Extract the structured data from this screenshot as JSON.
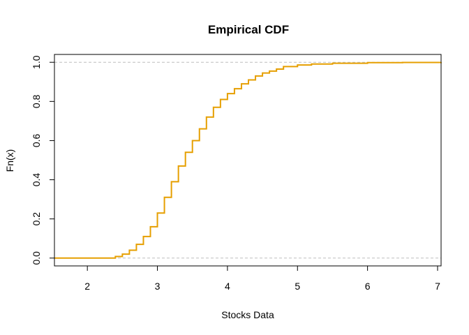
{
  "chart_data": {
    "type": "line",
    "step": true,
    "title": "Empirical CDF",
    "xlabel": "Stocks Data",
    "ylabel": "Fn(x)",
    "xlim": [
      1.53,
      7.05
    ],
    "ylim": [
      -0.04,
      1.04
    ],
    "xticks": [
      2,
      3,
      4,
      5,
      6,
      7
    ],
    "yticks": [
      0.0,
      0.2,
      0.4,
      0.6,
      0.8,
      1.0
    ],
    "xtick_labels": [
      "2",
      "3",
      "4",
      "5",
      "6",
      "7"
    ],
    "ytick_labels": [
      "0.0",
      "0.2",
      "0.4",
      "0.6",
      "0.8",
      "1.0"
    ],
    "reference_lines": [
      0,
      1
    ],
    "reference_line_style": "dashed",
    "grid": false,
    "legend": "none",
    "line_color": "#E69F00",
    "reference_color": "#BEBEBE",
    "series": [
      {
        "x": [
          1.53,
          2.3,
          2.4,
          2.5,
          2.6,
          2.7,
          2.8,
          2.9,
          3.0,
          3.1,
          3.2,
          3.3,
          3.4,
          3.5,
          3.6,
          3.7,
          3.8,
          3.9,
          4.0,
          4.1,
          4.2,
          4.3,
          4.4,
          4.5,
          4.6,
          4.7,
          4.8,
          5.0,
          5.2,
          5.5,
          6.0,
          6.5,
          7.05
        ],
        "y": [
          0.0,
          0.0,
          0.008,
          0.02,
          0.04,
          0.07,
          0.11,
          0.16,
          0.23,
          0.31,
          0.39,
          0.47,
          0.54,
          0.6,
          0.66,
          0.72,
          0.77,
          0.81,
          0.84,
          0.865,
          0.89,
          0.91,
          0.93,
          0.945,
          0.955,
          0.965,
          0.978,
          0.986,
          0.991,
          0.995,
          0.998,
          0.999,
          1.0
        ]
      }
    ]
  }
}
